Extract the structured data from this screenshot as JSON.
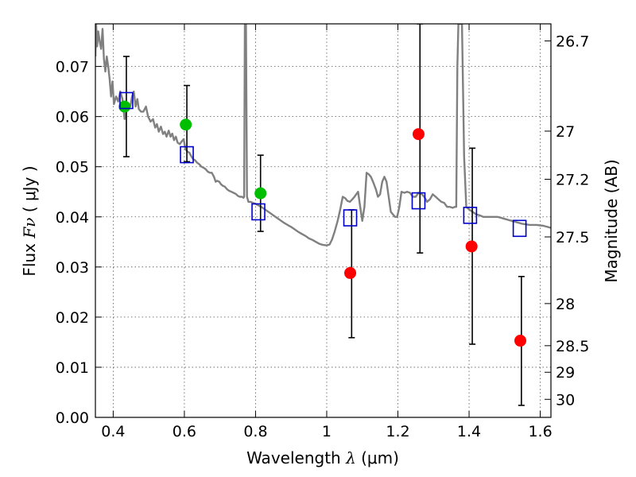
{
  "chart_data": {
    "type": "scatter",
    "xlabel_text": "Wavelength  ",
    "xlabel_symbol": "λ",
    "xlabel_unit": " (μm)",
    "ylabel_text": "Flux  ",
    "ylabel_symbol": "Fν",
    "ylabel_unit": "  ( μJy )",
    "y2label": "Magnitude (AB)",
    "xlim": [
      0.35,
      1.63
    ],
    "ylim": [
      0.0,
      0.0785
    ],
    "grid": true,
    "x_ticks": [
      {
        "value": 0.4,
        "label": "0.4"
      },
      {
        "value": 0.6,
        "label": "0.6"
      },
      {
        "value": 0.8,
        "label": "0.8"
      },
      {
        "value": 1.0,
        "label": "1"
      },
      {
        "value": 1.2,
        "label": "1.2"
      },
      {
        "value": 1.4,
        "label": "1.4"
      },
      {
        "value": 1.6,
        "label": "1.6"
      }
    ],
    "y_ticks": [
      {
        "value": 0.0,
        "label": "0.00"
      },
      {
        "value": 0.01,
        "label": "0.01"
      },
      {
        "value": 0.02,
        "label": "0.02"
      },
      {
        "value": 0.03,
        "label": "0.03"
      },
      {
        "value": 0.04,
        "label": "0.04"
      },
      {
        "value": 0.05,
        "label": "0.05"
      },
      {
        "value": 0.06,
        "label": "0.06"
      },
      {
        "value": 0.07,
        "label": "0.07"
      }
    ],
    "y2_ticks": [
      {
        "label": "26.7",
        "flux": 0.0751
      },
      {
        "label": "27",
        "flux": 0.0571
      },
      {
        "label": "27.2",
        "flux": 0.0475
      },
      {
        "label": "27.5",
        "flux": 0.036
      },
      {
        "label": "28",
        "flux": 0.0227
      },
      {
        "label": "28.5",
        "flux": 0.0143
      },
      {
        "label": "29",
        "flux": 0.009
      },
      {
        "label": "30",
        "flux": 0.0036
      }
    ],
    "model_spectrum": {
      "color": "#808080",
      "points": [
        [
          0.35,
          0.072
        ],
        [
          0.352,
          0.0785
        ],
        [
          0.355,
          0.074
        ],
        [
          0.358,
          0.077
        ],
        [
          0.362,
          0.075
        ],
        [
          0.366,
          0.0735
        ],
        [
          0.37,
          0.0775
        ],
        [
          0.374,
          0.0715
        ],
        [
          0.378,
          0.069
        ],
        [
          0.382,
          0.072
        ],
        [
          0.386,
          0.07
        ],
        [
          0.39,
          0.0675
        ],
        [
          0.394,
          0.064
        ],
        [
          0.398,
          0.067
        ],
        [
          0.402,
          0.0625
        ],
        [
          0.408,
          0.064
        ],
        [
          0.414,
          0.063
        ],
        [
          0.42,
          0.065
        ],
        [
          0.426,
          0.0635
        ],
        [
          0.432,
          0.0595
        ],
        [
          0.437,
          0.061
        ],
        [
          0.442,
          0.0625
        ],
        [
          0.448,
          0.062
        ],
        [
          0.453,
          0.064
        ],
        [
          0.458,
          0.065
        ],
        [
          0.463,
          0.062
        ],
        [
          0.468,
          0.0635
        ],
        [
          0.472,
          0.0615
        ],
        [
          0.478,
          0.061
        ],
        [
          0.485,
          0.061
        ],
        [
          0.492,
          0.062
        ],
        [
          0.498,
          0.06
        ],
        [
          0.505,
          0.059
        ],
        [
          0.512,
          0.0595
        ],
        [
          0.518,
          0.0578
        ],
        [
          0.523,
          0.0585
        ],
        [
          0.528,
          0.057
        ],
        [
          0.534,
          0.058
        ],
        [
          0.54,
          0.0565
        ],
        [
          0.545,
          0.057
        ],
        [
          0.55,
          0.056
        ],
        [
          0.556,
          0.0572
        ],
        [
          0.561,
          0.056
        ],
        [
          0.566,
          0.0566
        ],
        [
          0.571,
          0.0553
        ],
        [
          0.576,
          0.056
        ],
        [
          0.581,
          0.0548
        ],
        [
          0.587,
          0.0545
        ],
        [
          0.592,
          0.055
        ],
        [
          0.598,
          0.0555
        ],
        [
          0.603,
          0.0535
        ],
        [
          0.609,
          0.053
        ],
        [
          0.614,
          0.0528
        ],
        [
          0.62,
          0.052
        ],
        [
          0.625,
          0.0515
        ],
        [
          0.63,
          0.0513
        ],
        [
          0.636,
          0.0508
        ],
        [
          0.642,
          0.0505
        ],
        [
          0.648,
          0.05
        ],
        [
          0.654,
          0.0498
        ],
        [
          0.66,
          0.0495
        ],
        [
          0.666,
          0.049
        ],
        [
          0.672,
          0.0488
        ],
        [
          0.677,
          0.0488
        ],
        [
          0.683,
          0.048
        ],
        [
          0.688,
          0.047
        ],
        [
          0.692,
          0.0472
        ],
        [
          0.698,
          0.047
        ],
        [
          0.703,
          0.0465
        ],
        [
          0.708,
          0.0462
        ],
        [
          0.714,
          0.046
        ],
        [
          0.72,
          0.0455
        ],
        [
          0.726,
          0.0452
        ],
        [
          0.732,
          0.045
        ],
        [
          0.738,
          0.0448
        ],
        [
          0.744,
          0.0446
        ],
        [
          0.75,
          0.0442
        ],
        [
          0.756,
          0.044
        ],
        [
          0.762,
          0.044
        ],
        [
          0.766,
          0.0438
        ],
        [
          0.768,
          0.044
        ],
        [
          0.77,
          0.0785
        ],
        [
          0.773,
          0.0785
        ],
        [
          0.776,
          0.044
        ],
        [
          0.78,
          0.043
        ],
        [
          0.786,
          0.043
        ],
        [
          0.792,
          0.0428
        ],
        [
          0.8,
          0.0426
        ],
        [
          0.808,
          0.0423
        ],
        [
          0.816,
          0.042
        ],
        [
          0.824,
          0.0416
        ],
        [
          0.832,
          0.0412
        ],
        [
          0.84,
          0.0408
        ],
        [
          0.85,
          0.0403
        ],
        [
          0.86,
          0.0398
        ],
        [
          0.87,
          0.0393
        ],
        [
          0.88,
          0.0388
        ],
        [
          0.89,
          0.0384
        ],
        [
          0.9,
          0.038
        ],
        [
          0.91,
          0.0375
        ],
        [
          0.92,
          0.037
        ],
        [
          0.93,
          0.0366
        ],
        [
          0.94,
          0.0362
        ],
        [
          0.95,
          0.0357
        ],
        [
          0.96,
          0.0354
        ],
        [
          0.97,
          0.035
        ],
        [
          0.98,
          0.0346
        ],
        [
          0.99,
          0.0344
        ],
        [
          1.0,
          0.0343
        ],
        [
          1.008,
          0.0345
        ],
        [
          1.015,
          0.0355
        ],
        [
          1.022,
          0.037
        ],
        [
          1.03,
          0.039
        ],
        [
          1.038,
          0.0415
        ],
        [
          1.045,
          0.044
        ],
        [
          1.052,
          0.0437
        ],
        [
          1.058,
          0.0432
        ],
        [
          1.065,
          0.043
        ],
        [
          1.072,
          0.0435
        ],
        [
          1.078,
          0.044
        ],
        [
          1.083,
          0.0445
        ],
        [
          1.088,
          0.045
        ],
        [
          1.094,
          0.042
        ],
        [
          1.1,
          0.0392
        ],
        [
          1.106,
          0.042
        ],
        [
          1.112,
          0.0488
        ],
        [
          1.118,
          0.0485
        ],
        [
          1.124,
          0.048
        ],
        [
          1.13,
          0.047
        ],
        [
          1.138,
          0.0455
        ],
        [
          1.144,
          0.044
        ],
        [
          1.15,
          0.0445
        ],
        [
          1.156,
          0.047
        ],
        [
          1.162,
          0.048
        ],
        [
          1.168,
          0.047
        ],
        [
          1.174,
          0.044
        ],
        [
          1.18,
          0.041
        ],
        [
          1.186,
          0.0405
        ],
        [
          1.192,
          0.04
        ],
        [
          1.198,
          0.04
        ],
        [
          1.204,
          0.042
        ],
        [
          1.21,
          0.045
        ],
        [
          1.218,
          0.0448
        ],
        [
          1.226,
          0.045
        ],
        [
          1.234,
          0.0448
        ],
        [
          1.242,
          0.044
        ],
        [
          1.25,
          0.044
        ],
        [
          1.258,
          0.0448
        ],
        [
          1.266,
          0.0446
        ],
        [
          1.274,
          0.044
        ],
        [
          1.282,
          0.043
        ],
        [
          1.29,
          0.0435
        ],
        [
          1.298,
          0.0445
        ],
        [
          1.306,
          0.044
        ],
        [
          1.314,
          0.0435
        ],
        [
          1.322,
          0.043
        ],
        [
          1.33,
          0.0428
        ],
        [
          1.338,
          0.042
        ],
        [
          1.346,
          0.042
        ],
        [
          1.354,
          0.0418
        ],
        [
          1.36,
          0.042
        ],
        [
          1.364,
          0.042
        ],
        [
          1.367,
          0.07
        ],
        [
          1.37,
          0.0785
        ],
        [
          1.375,
          0.0785
        ],
        [
          1.38,
          0.0785
        ],
        [
          1.386,
          0.052
        ],
        [
          1.392,
          0.042
        ],
        [
          1.4,
          0.0415
        ],
        [
          1.41,
          0.041
        ],
        [
          1.42,
          0.0405
        ],
        [
          1.43,
          0.0403
        ],
        [
          1.44,
          0.04
        ],
        [
          1.45,
          0.04
        ],
        [
          1.46,
          0.04
        ],
        [
          1.47,
          0.04
        ],
        [
          1.48,
          0.04
        ],
        [
          1.49,
          0.0398
        ],
        [
          1.5,
          0.0396
        ],
        [
          1.51,
          0.0394
        ],
        [
          1.52,
          0.0392
        ],
        [
          1.53,
          0.039
        ],
        [
          1.54,
          0.0388
        ],
        [
          1.55,
          0.0386
        ],
        [
          1.56,
          0.0385
        ],
        [
          1.57,
          0.0384
        ],
        [
          1.58,
          0.0384
        ],
        [
          1.59,
          0.0384
        ],
        [
          1.6,
          0.0383
        ],
        [
          1.61,
          0.0382
        ],
        [
          1.62,
          0.038
        ],
        [
          1.63,
          0.0378
        ]
      ]
    },
    "series": [
      {
        "marker": "circle",
        "color": "#00bf00",
        "points": [
          {
            "x": 0.432,
            "y": 0.062
          },
          {
            "x": 0.604,
            "y": 0.0584
          },
          {
            "x": 0.814,
            "y": 0.0447
          }
        ]
      },
      {
        "marker": "circle",
        "color": "#ff0000",
        "points": [
          {
            "x": 1.066,
            "y": 0.0288
          },
          {
            "x": 1.258,
            "y": 0.0565
          },
          {
            "x": 1.407,
            "y": 0.0341
          },
          {
            "x": 1.544,
            "y": 0.0153
          }
        ]
      },
      {
        "marker": "square-open",
        "color": "#0000cc",
        "points": [
          {
            "x": 0.437,
            "y": 0.0632
          },
          {
            "x": 0.607,
            "y": 0.0524
          },
          {
            "x": 0.808,
            "y": 0.041
          },
          {
            "x": 1.066,
            "y": 0.0398
          },
          {
            "x": 1.258,
            "y": 0.0432
          },
          {
            "x": 1.403,
            "y": 0.0403
          },
          {
            "x": 1.542,
            "y": 0.0377
          }
        ]
      }
    ],
    "error_bars": [
      {
        "x": 0.437,
        "ylo": 0.052,
        "yhi": 0.072
      },
      {
        "x": 0.607,
        "ylo": 0.051,
        "yhi": 0.0662
      },
      {
        "x": 0.814,
        "ylo": 0.0371,
        "yhi": 0.0523
      },
      {
        "x": 1.07,
        "ylo": 0.0159,
        "yhi": 0.0414
      },
      {
        "x": 1.262,
        "ylo": 0.0328,
        "yhi": 0.0785
      },
      {
        "x": 1.409,
        "ylo": 0.0146,
        "yhi": 0.0537
      },
      {
        "x": 1.547,
        "ylo": 0.0024,
        "yhi": 0.0281
      }
    ]
  }
}
